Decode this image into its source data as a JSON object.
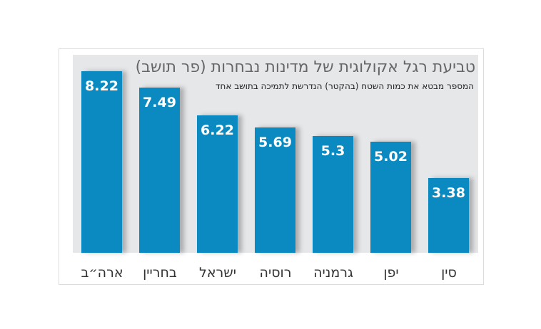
{
  "chart_data": {
    "type": "bar",
    "title": "טביעת רגל אקולוגית של מדינות נבחרות (פר תושב)",
    "subtitle": "המספר מבטא את כמות השטח (בהקטר) הנדרשת לתמיכה בתושב אחד",
    "categories": [
      "ארה״ב",
      "בחריין",
      "ישראל",
      "רוסיה",
      "גרמניה",
      "יפן",
      "סין"
    ],
    "values": [
      8.22,
      7.49,
      6.22,
      5.69,
      5.3,
      5.02,
      3.38
    ],
    "value_labels": [
      "8.22",
      "7.49",
      "6.22",
      "5.69",
      "5.3",
      "5.02",
      "3.38"
    ],
    "bar_color": "#0a8ac0",
    "grid": false,
    "legend": "none"
  }
}
